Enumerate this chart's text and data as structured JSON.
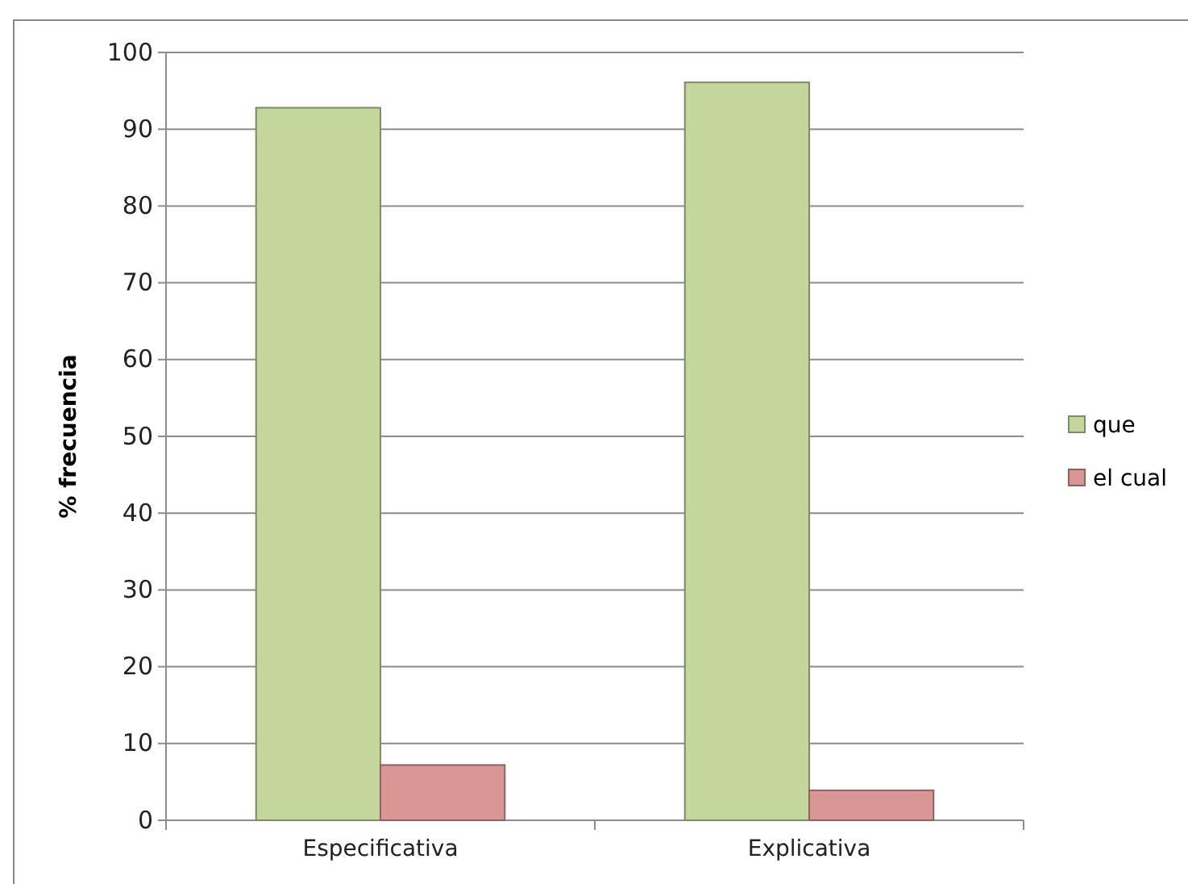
{
  "chart_data": {
    "type": "bar",
    "ylabel": "% frecuencia",
    "categories": [
      "Especificativa",
      "Explicativa"
    ],
    "series": [
      {
        "name": "que",
        "color": "#c3d69b",
        "values": [
          92.8,
          96.1
        ]
      },
      {
        "name": "el cual",
        "color": "#d99694",
        "values": [
          7.2,
          3.9
        ]
      }
    ],
    "ylim": [
      0,
      100
    ],
    "yticks": [
      0,
      10,
      20,
      30,
      40,
      50,
      60,
      70,
      80,
      90,
      100
    ],
    "grid": "y",
    "legend": "right"
  }
}
